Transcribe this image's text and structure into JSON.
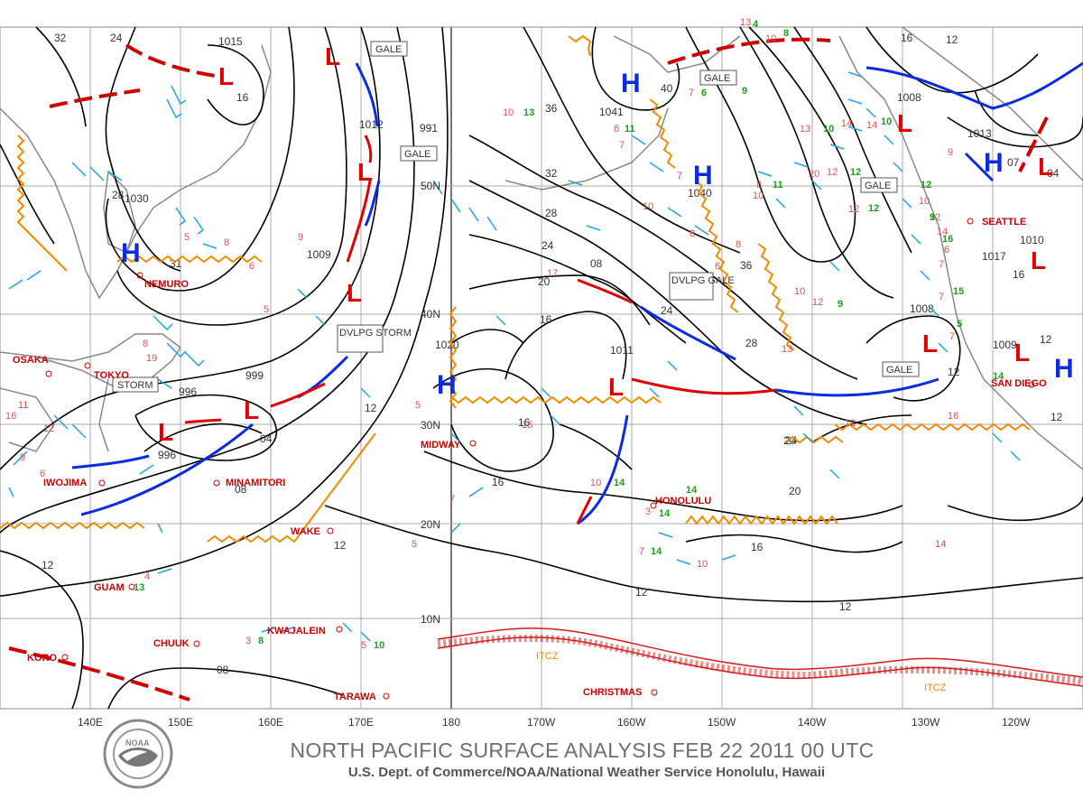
{
  "title": "NORTH PACIFIC SURFACE ANALYSIS FEB 22 2011 00 UTC",
  "subtitle": "U.S. Dept. of Commerce/NOAA/National Weather Service Honolulu, Hawaii",
  "logo_text": "NOAA",
  "lon_labels": [
    "140E",
    "150E",
    "160E",
    "170E",
    "180",
    "170W",
    "160W",
    "150W",
    "140W",
    "130W",
    "120W"
  ],
  "lat_labels": [
    "50N",
    "40N",
    "30N",
    "20N",
    "10N"
  ],
  "cities": [
    "OSAKA",
    "TOKYO",
    "NEMURO",
    "IWOJIMA",
    "MINAMITORI",
    "GUAM",
    "CHUUK",
    "KORO",
    "KWAJALEIN",
    "TARAWA",
    "WAKE",
    "MIDWAY",
    "HONOLULU",
    "CHRISTMAS",
    "SEATTLE",
    "SAN DIEGO"
  ],
  "isobar_labels": [
    "32",
    "24",
    "1015",
    "16",
    "1012",
    "991",
    "36",
    "1041",
    "40",
    "16",
    "12",
    "1008",
    "1013",
    "1030",
    "1009",
    "31",
    "28",
    "32",
    "28",
    "24",
    "20",
    "16",
    "1040",
    "36",
    "28",
    "24",
    "20",
    "16",
    "999",
    "996",
    "996",
    "04",
    "08",
    "1020",
    "12",
    "16",
    "1011",
    "08",
    "24",
    "20",
    "16",
    "12",
    "12",
    "12",
    "12",
    "08",
    "1008",
    "1017",
    "16",
    "1010",
    "1009",
    "12",
    "07",
    "04",
    "12",
    "12"
  ],
  "boxes": [
    "GALE",
    "GALE",
    "GALE",
    "DVLPG GALE",
    "DVLPG STORM",
    "STORM",
    "GALE",
    "GALE"
  ],
  "highs": [
    "H",
    "H",
    "H",
    "H",
    "H",
    "H"
  ],
  "lows": [
    "L",
    "L",
    "L",
    "L",
    "L",
    "L",
    "L",
    "L",
    "L",
    "L",
    "L",
    "L"
  ],
  "itcz": [
    "ITCZ",
    "ITCZ"
  ],
  "wind_red": [
    "10",
    "6",
    "7",
    "7",
    "10",
    "8",
    "10",
    "12",
    "12",
    "14",
    "13",
    "10",
    "8",
    "6",
    "8",
    "7",
    "13",
    "9",
    "5",
    "8",
    "19",
    "6",
    "12",
    "11",
    "9",
    "16",
    "6",
    "4",
    "3",
    "5",
    "17",
    "5",
    "7",
    "16",
    "10",
    "14",
    "10",
    "13",
    "9",
    "7",
    "12",
    "14",
    "10",
    "7",
    "7",
    "10",
    "16",
    "14",
    "3",
    "5",
    "8",
    "5",
    "7",
    "20",
    "12",
    "12",
    "6"
  ],
  "wind_green": [
    "13",
    "11",
    "6",
    "9",
    "10",
    "9",
    "11",
    "12",
    "12",
    "14",
    "13",
    "10",
    "14",
    "8",
    "10",
    "14",
    "4",
    "8",
    "9",
    "14",
    "15",
    "5",
    "16",
    "14",
    "12"
  ]
}
